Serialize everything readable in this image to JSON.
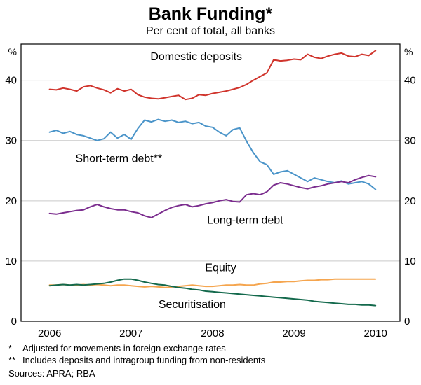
{
  "page": {
    "title": "Bank Funding*",
    "subtitle": "Per cent of total, all banks",
    "footnotes": [
      {
        "marker": "*",
        "text": "Adjusted for movements in foreign exchange rates"
      },
      {
        "marker": "**",
        "text": "Includes deposits and intragroup funding from non-residents"
      }
    ],
    "sources": "Sources: APRA; RBA"
  },
  "chart_data": {
    "type": "line",
    "title": "Bank Funding*",
    "subtitle": "Per cent of total, all banks",
    "unit_label": "%",
    "xlabel": "",
    "ylabel": "%",
    "x_start_year": 2006,
    "x_step_years": 0.0833333,
    "xlim": [
      2005.65,
      2010.3
    ],
    "ylim": [
      0,
      46
    ],
    "y_ticks": [
      0,
      10,
      20,
      30,
      40
    ],
    "x_ticks": [
      2006,
      2007,
      2008,
      2009,
      2010
    ],
    "grid": "horizontal",
    "legend_position": "inline-labels",
    "series": [
      {
        "name": "Domestic deposits",
        "color": "#d0342c",
        "values": [
          38.5,
          38.4,
          38.7,
          38.5,
          38.2,
          38.9,
          39.1,
          38.7,
          38.4,
          37.9,
          38.6,
          38.2,
          38.5,
          37.6,
          37.2,
          37.0,
          36.9,
          37.1,
          37.3,
          37.5,
          36.8,
          37.0,
          37.6,
          37.5,
          37.8,
          38.0,
          38.2,
          38.5,
          38.8,
          39.3,
          40.0,
          40.6,
          41.2,
          43.4,
          43.2,
          43.3,
          43.5,
          43.4,
          44.3,
          43.8,
          43.6,
          44.0,
          44.3,
          44.5,
          44.0,
          43.9,
          44.3,
          44.1,
          44.9
        ]
      },
      {
        "name": "Short-term debt**",
        "color": "#4a94c9",
        "values": [
          31.4,
          31.7,
          31.2,
          31.5,
          31.0,
          30.8,
          30.4,
          30.0,
          30.3,
          31.4,
          30.4,
          31.0,
          30.2,
          32.0,
          33.4,
          33.1,
          33.5,
          33.2,
          33.4,
          33.0,
          33.2,
          32.8,
          33.0,
          32.4,
          32.2,
          31.4,
          30.8,
          31.8,
          32.1,
          29.9,
          28.0,
          26.5,
          26.0,
          24.4,
          24.8,
          25.0,
          24.4,
          23.8,
          23.2,
          23.8,
          23.5,
          23.2,
          23.0,
          23.3,
          22.8,
          23.0,
          23.2,
          22.8,
          21.9
        ]
      },
      {
        "name": "Long-term debt",
        "color": "#7b2d8e",
        "values": [
          17.9,
          17.8,
          18.0,
          18.2,
          18.4,
          18.5,
          19.0,
          19.4,
          19.0,
          18.7,
          18.5,
          18.5,
          18.2,
          18.0,
          17.5,
          17.2,
          17.8,
          18.4,
          18.9,
          19.2,
          19.4,
          19.0,
          19.2,
          19.5,
          19.7,
          20.0,
          20.2,
          19.9,
          19.8,
          21.0,
          21.2,
          21.0,
          21.5,
          22.6,
          23.0,
          22.8,
          22.5,
          22.2,
          22.0,
          22.3,
          22.5,
          22.8,
          23.0,
          23.2,
          23.0,
          23.5,
          23.9,
          24.2,
          24.0
        ]
      },
      {
        "name": "Equity",
        "color": "#f5a54e",
        "values": [
          6.0,
          6.0,
          6.1,
          6.0,
          6.0,
          6.1,
          6.0,
          6.1,
          6.0,
          5.9,
          6.0,
          6.0,
          5.9,
          5.8,
          5.7,
          5.8,
          5.7,
          5.6,
          5.7,
          5.8,
          5.9,
          6.0,
          5.9,
          5.8,
          5.8,
          5.9,
          6.0,
          6.0,
          6.1,
          6.0,
          6.0,
          6.2,
          6.3,
          6.5,
          6.5,
          6.6,
          6.6,
          6.7,
          6.8,
          6.8,
          6.9,
          6.9,
          7.0,
          7.0,
          7.0,
          7.0,
          7.0,
          7.0,
          7.0
        ]
      },
      {
        "name": "Securitisation",
        "color": "#13694c",
        "values": [
          5.9,
          6.0,
          6.1,
          6.0,
          6.1,
          6.0,
          6.1,
          6.2,
          6.3,
          6.5,
          6.8,
          7.0,
          7.0,
          6.8,
          6.5,
          6.3,
          6.1,
          6.0,
          5.8,
          5.6,
          5.5,
          5.3,
          5.2,
          5.0,
          4.9,
          4.8,
          4.7,
          4.6,
          4.5,
          4.4,
          4.3,
          4.2,
          4.1,
          4.0,
          3.9,
          3.8,
          3.7,
          3.6,
          3.5,
          3.3,
          3.2,
          3.1,
          3.0,
          2.9,
          2.8,
          2.8,
          2.7,
          2.7,
          2.6
        ]
      }
    ],
    "annotations": [
      {
        "text": "Domestic deposits",
        "x": 2007.8,
        "y": 43.3,
        "color": "#d0342c"
      },
      {
        "text": "Short-term debt**",
        "x": 2006.85,
        "y": 26.4,
        "color": "#4a94c9"
      },
      {
        "text": "Long-term debt",
        "x": 2008.4,
        "y": 16.2,
        "color": "#7b2d8e"
      },
      {
        "text": "Equity",
        "x": 2008.1,
        "y": 8.3,
        "color": "#f5a54e"
      },
      {
        "text": "Securitisation",
        "x": 2007.75,
        "y": 2.2,
        "color": "#13694c"
      }
    ]
  }
}
